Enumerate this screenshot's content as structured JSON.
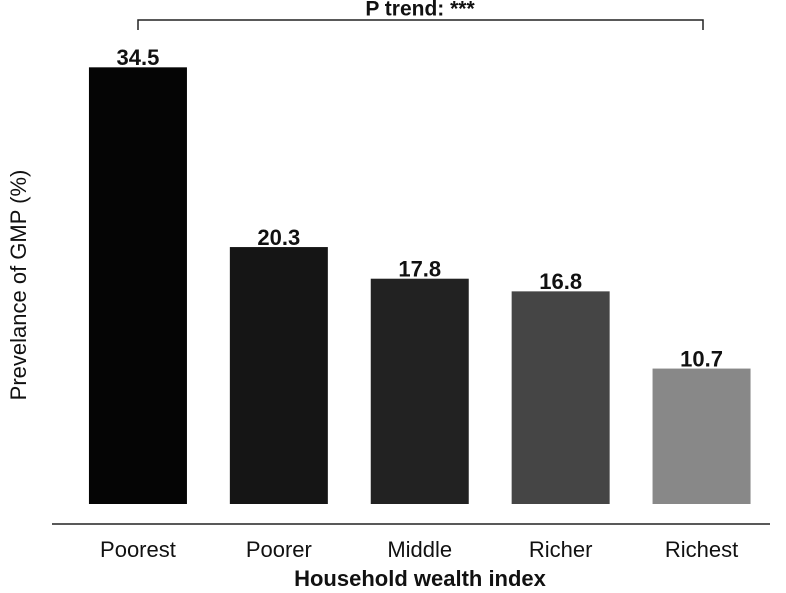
{
  "chart_data": {
    "type": "bar",
    "annotation": "P trend: ***",
    "x_label": "Household wealth index",
    "y_label": "Prevelance of GMP (%)",
    "categories": [
      "Poorest",
      "Poorer",
      "Middle",
      "Richer",
      "Richest"
    ],
    "values": [
      34.5,
      20.3,
      17.8,
      16.8,
      10.7
    ],
    "colors": [
      "#050505",
      "#151515",
      "#222222",
      "#454545",
      "#888888"
    ],
    "ylim": [
      0,
      35
    ]
  }
}
